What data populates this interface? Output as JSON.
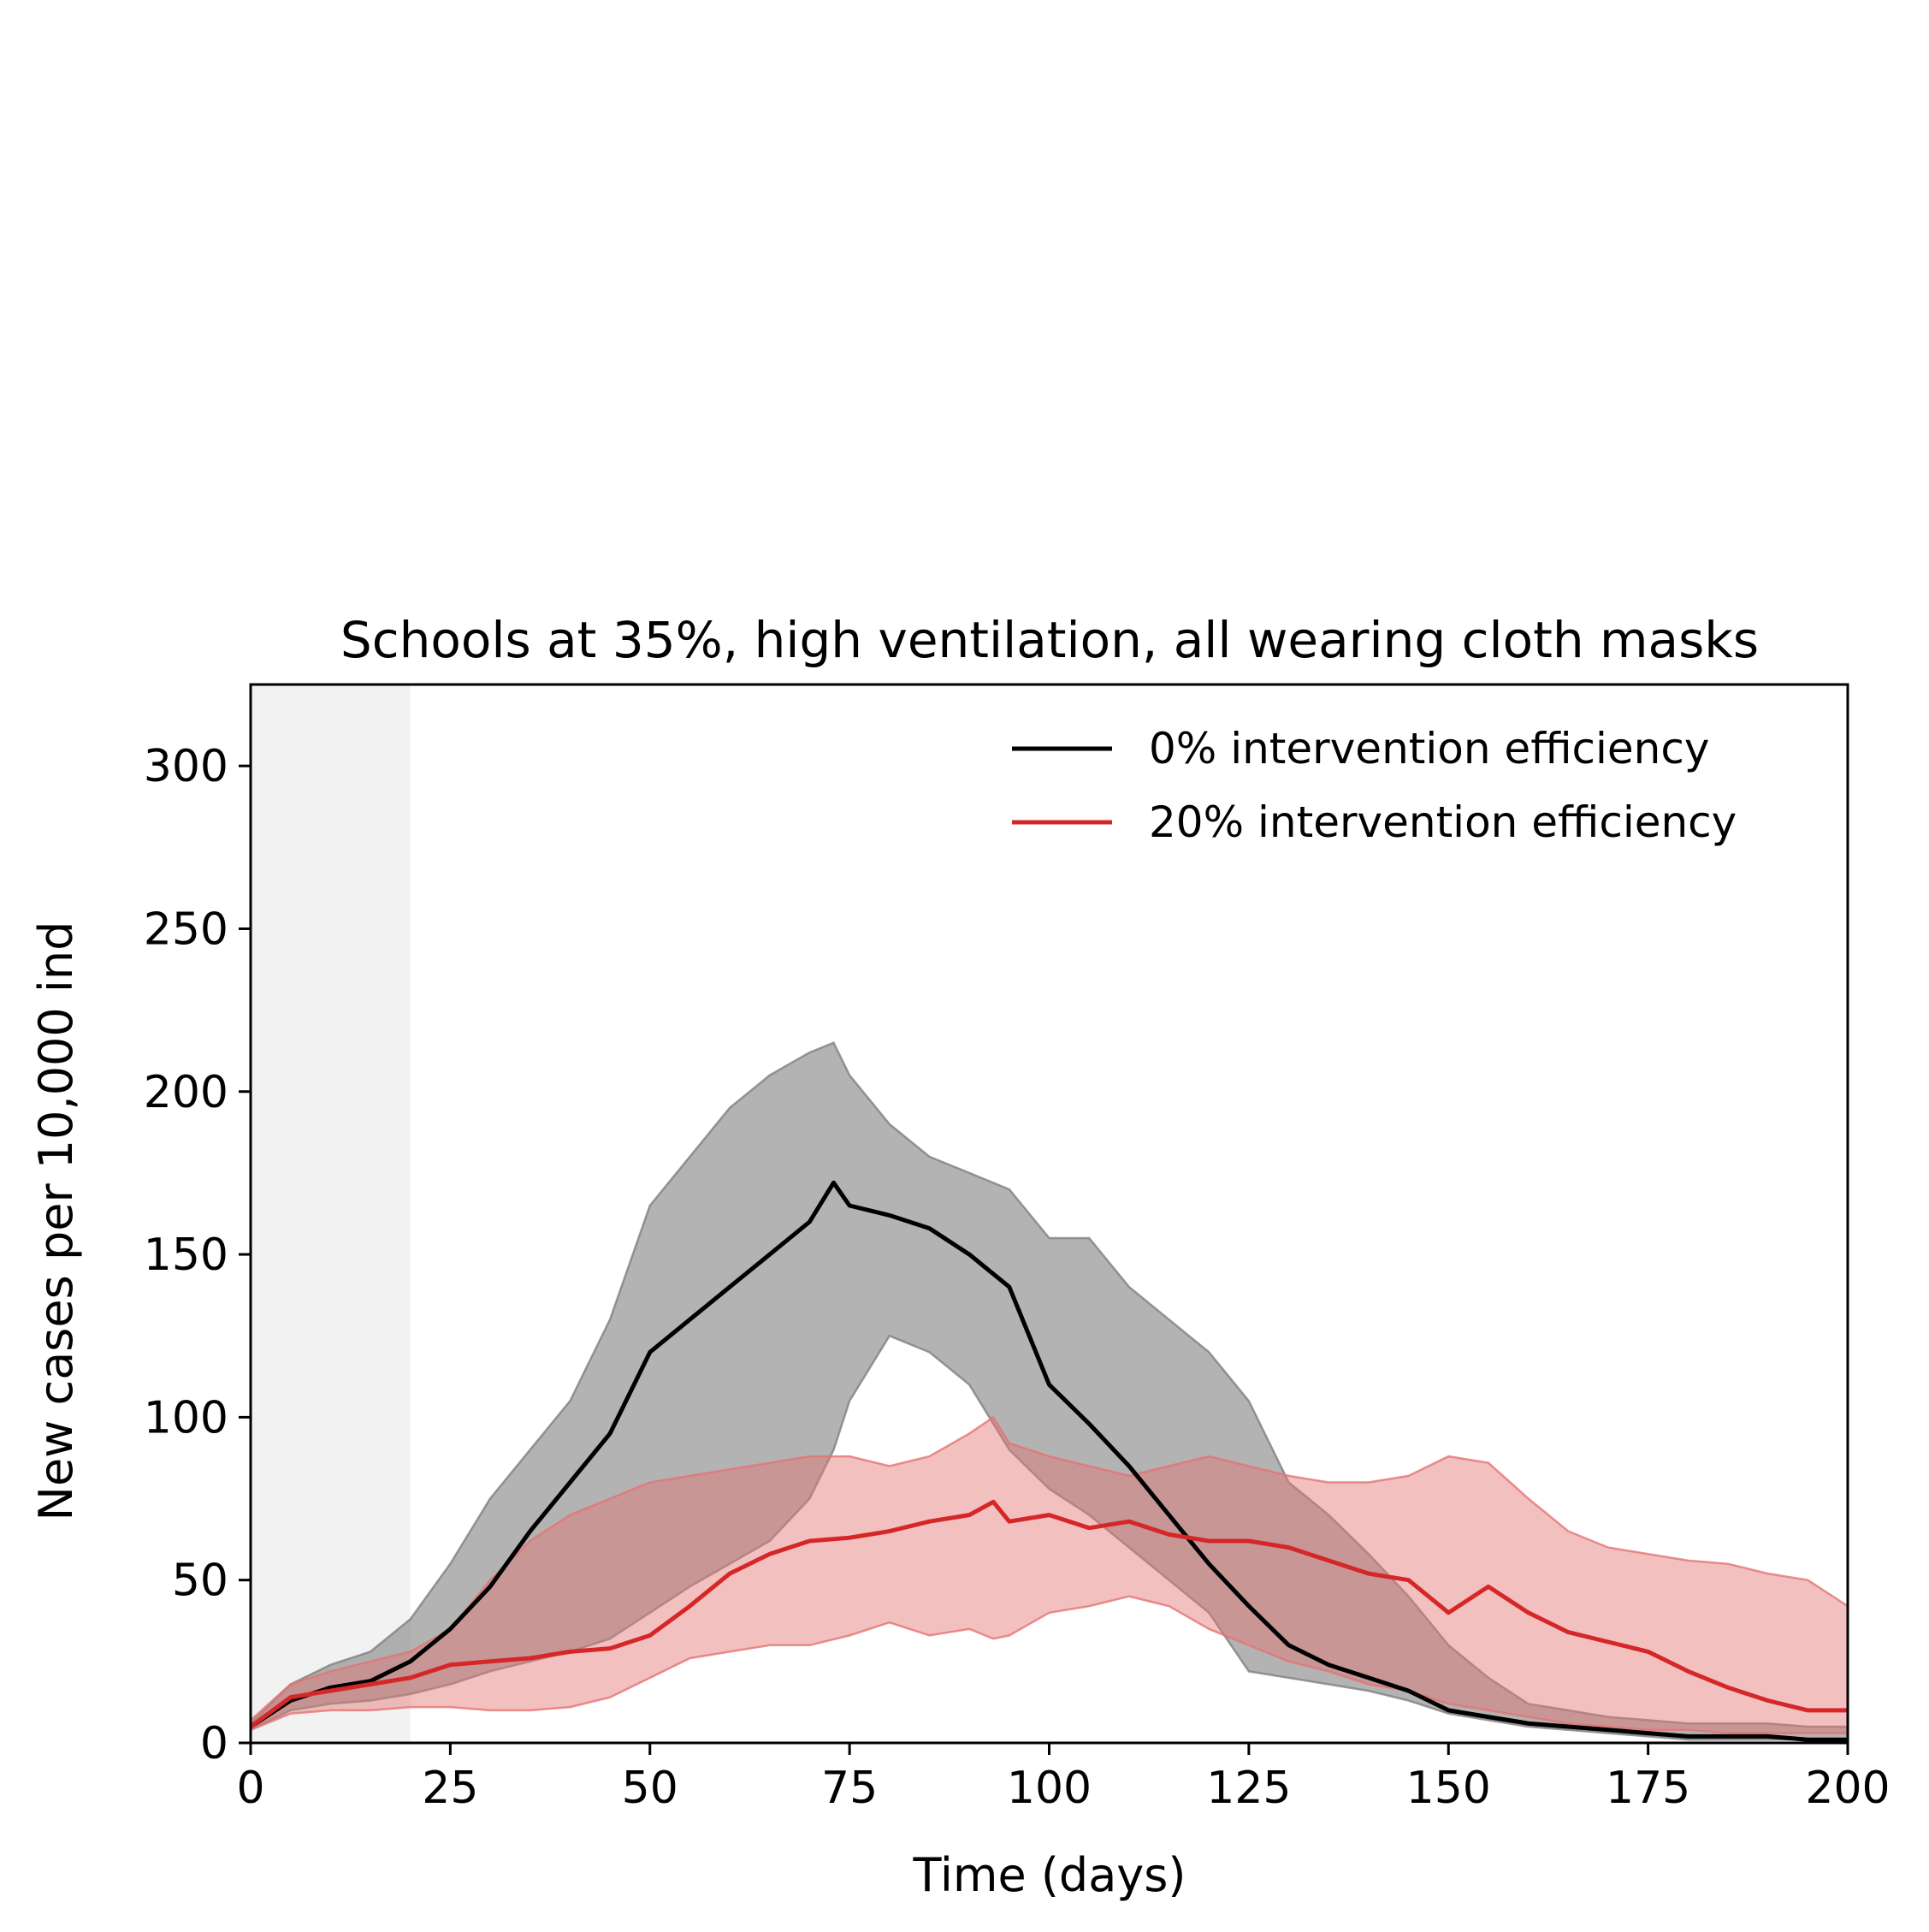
{
  "chart_data": {
    "type": "line",
    "title": "Schools at 35%, high ventilation, all wearing cloth masks",
    "xlabel": "Time (days)",
    "ylabel": "New cases per 10,000 ind",
    "xlim": [
      0,
      200
    ],
    "ylim": [
      0,
      325
    ],
    "xticks": [
      0,
      25,
      50,
      75,
      100,
      125,
      150,
      175,
      200
    ],
    "yticks": [
      0,
      50,
      100,
      150,
      200,
      250,
      300
    ],
    "shaded_region": {
      "x_start": 0,
      "x_end": 20,
      "color": "#f2f2f2"
    },
    "grid": false,
    "legend_position": "top-right",
    "series": [
      {
        "name": "0% intervention efficiency",
        "color": "#000000",
        "band_color": "#808080",
        "x": [
          0,
          5,
          10,
          15,
          20,
          25,
          30,
          35,
          40,
          45,
          50,
          55,
          60,
          65,
          70,
          73,
          75,
          80,
          85,
          90,
          95,
          100,
          105,
          110,
          115,
          120,
          125,
          130,
          135,
          140,
          145,
          150,
          155,
          160,
          165,
          170,
          175,
          180,
          185,
          190,
          195,
          200
        ],
        "y": [
          5,
          13,
          17,
          19,
          25,
          35,
          48,
          65,
          80,
          95,
          120,
          130,
          140,
          150,
          160,
          172,
          165,
          162,
          158,
          150,
          140,
          110,
          98,
          85,
          70,
          55,
          42,
          30,
          24,
          20,
          16,
          10,
          8,
          6,
          5,
          4,
          3,
          2,
          2,
          2,
          1,
          1
        ],
        "lower": [
          4,
          10,
          12,
          13,
          15,
          18,
          22,
          25,
          28,
          32,
          40,
          48,
          55,
          62,
          75,
          90,
          105,
          125,
          120,
          110,
          90,
          78,
          70,
          60,
          50,
          40,
          22,
          20,
          18,
          16,
          13,
          9,
          7,
          5,
          4,
          3,
          2,
          1,
          1,
          1,
          1,
          0
        ],
        "upper": [
          6,
          18,
          24,
          28,
          38,
          55,
          75,
          90,
          105,
          130,
          165,
          180,
          195,
          205,
          212,
          215,
          205,
          190,
          180,
          175,
          170,
          155,
          155,
          140,
          130,
          120,
          105,
          80,
          70,
          58,
          45,
          30,
          20,
          12,
          10,
          8,
          7,
          6,
          6,
          6,
          5,
          5
        ]
      },
      {
        "name": "20% intervention efficiency",
        "color": "#d62728",
        "band_color": "#e57373",
        "x": [
          0,
          5,
          10,
          15,
          20,
          25,
          30,
          35,
          40,
          45,
          50,
          55,
          60,
          65,
          70,
          75,
          80,
          85,
          90,
          93,
          95,
          100,
          105,
          110,
          115,
          120,
          125,
          130,
          135,
          140,
          145,
          150,
          155,
          160,
          165,
          170,
          175,
          180,
          185,
          190,
          195,
          200
        ],
        "y": [
          5,
          14,
          16,
          18,
          20,
          24,
          25,
          26,
          28,
          29,
          33,
          42,
          52,
          58,
          62,
          63,
          65,
          68,
          70,
          74,
          68,
          70,
          66,
          68,
          64,
          62,
          62,
          60,
          56,
          52,
          50,
          40,
          48,
          40,
          34,
          31,
          28,
          22,
          17,
          13,
          10,
          10
        ],
        "lower": [
          4,
          9,
          10,
          10,
          11,
          11,
          10,
          10,
          11,
          14,
          20,
          26,
          28,
          30,
          30,
          33,
          37,
          33,
          35,
          32,
          33,
          40,
          42,
          45,
          42,
          35,
          30,
          25,
          22,
          18,
          16,
          12,
          10,
          8,
          6,
          5,
          4,
          4,
          3,
          3,
          3,
          3
        ],
        "upper": [
          7,
          18,
          22,
          25,
          28,
          35,
          50,
          62,
          70,
          75,
          80,
          82,
          84,
          86,
          88,
          88,
          85,
          88,
          95,
          100,
          92,
          88,
          85,
          82,
          85,
          88,
          85,
          82,
          80,
          80,
          82,
          88,
          86,
          75,
          65,
          60,
          58,
          56,
          55,
          52,
          50,
          42
        ]
      }
    ]
  }
}
